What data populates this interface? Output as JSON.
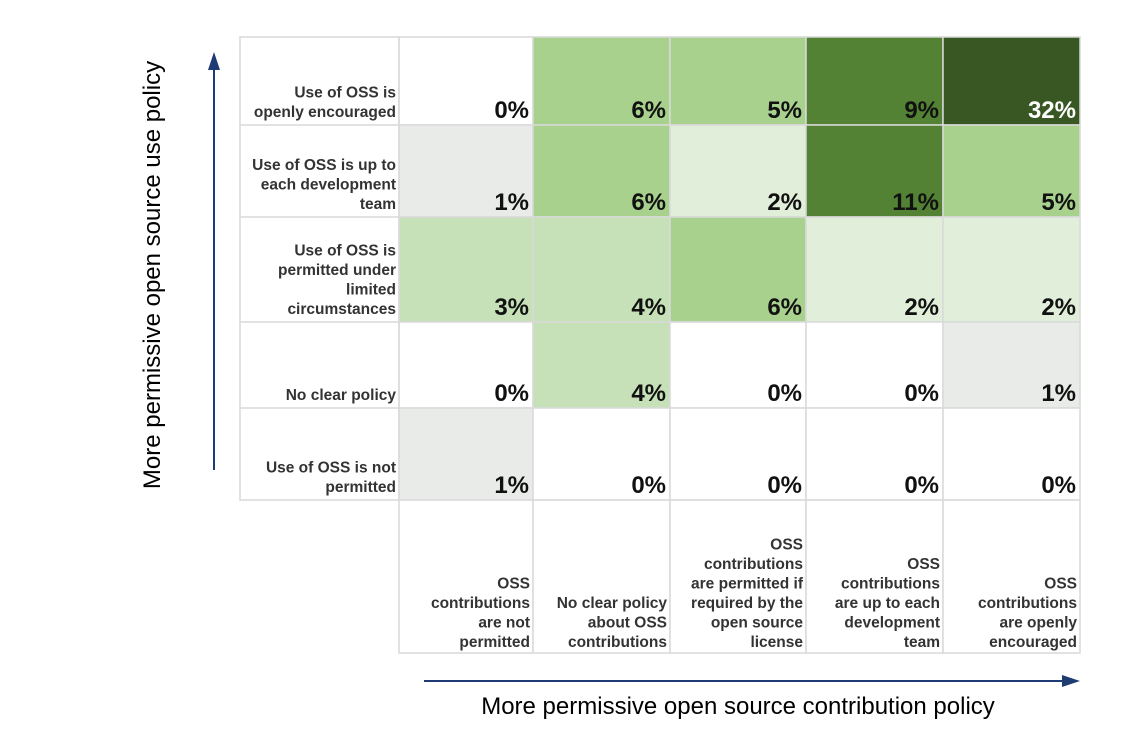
{
  "chart_data": {
    "type": "heatmap",
    "title": "",
    "ylabel": "More permissive open source use policy",
    "xlabel": "More permissive open source contribution policy",
    "rows": [
      "Use of OSS is openly encouraged",
      "Use of OSS is up to each development team",
      "Use of OSS is permitted under limited circumstances",
      "No clear policy",
      "Use of OSS is not permitted"
    ],
    "columns": [
      "OSS contributions are not permitted",
      "No clear policy about OSS contributions",
      "OSS contributions are permitted if required by the open source license",
      "OSS contributions are up to each development team",
      "OSS contributions are openly encouraged"
    ],
    "values": [
      [
        0,
        6,
        5,
        9,
        32
      ],
      [
        1,
        6,
        2,
        11,
        5
      ],
      [
        3,
        4,
        6,
        2,
        2
      ],
      [
        0,
        4,
        0,
        0,
        1
      ],
      [
        1,
        0,
        0,
        0,
        0
      ]
    ],
    "value_suffix": "%",
    "colors": {
      "zero": "#ffffff",
      "low": "#e8ebe8",
      "light": "#e1eeda",
      "mid_light": "#c6e1b7",
      "mid": "#a9d18e",
      "dark": "#548235",
      "darkest": "#385723",
      "grid": "#d9d9d9",
      "arrow": "#1f3b73"
    }
  }
}
